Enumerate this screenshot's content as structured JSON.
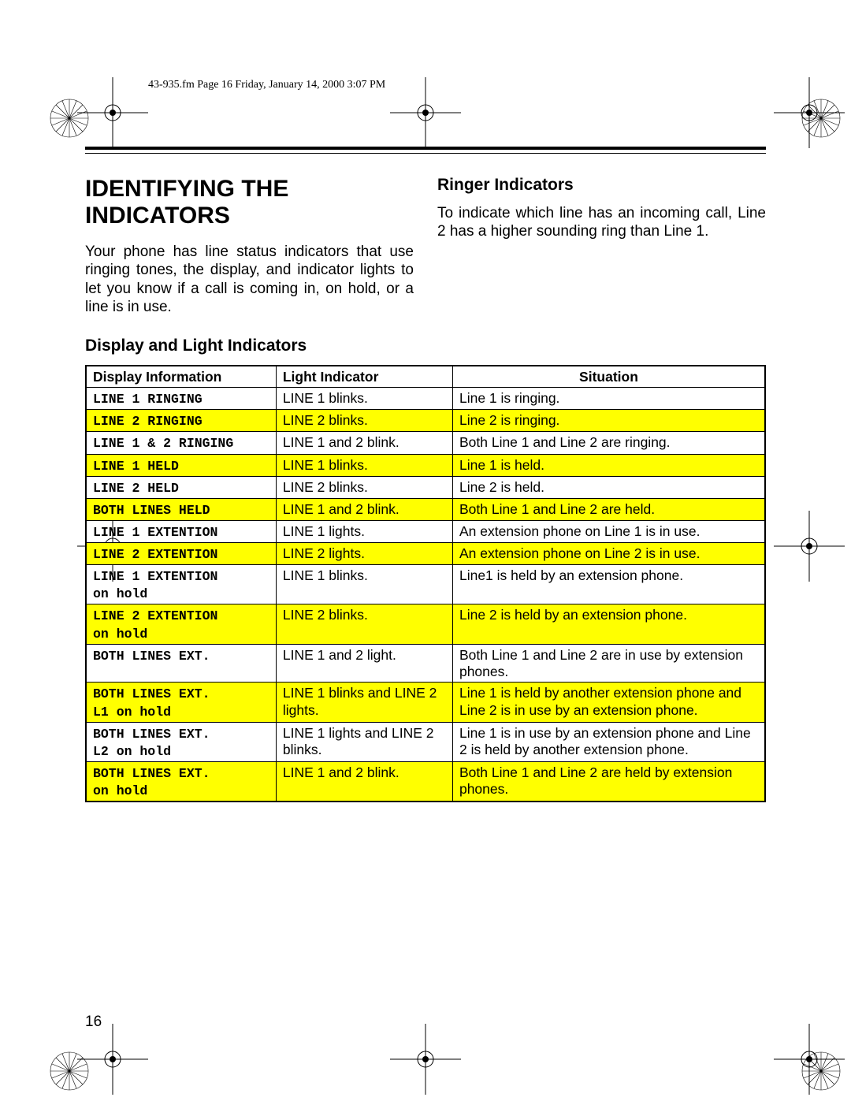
{
  "header": "43-935.fm  Page 16  Friday, January 14, 2000  3:07 PM",
  "title": "IDENTIFYING THE INDICATORS",
  "intro": "Your phone has line status indicators that use ringing tones, the display, and indicator lights to let you know if a call is coming in, on hold, or a line is in use.",
  "ringer": {
    "heading": "Ringer Indicators",
    "text": "To indicate which line has an incoming call, Line 2 has a higher sounding ring than Line 1."
  },
  "section_heading": "Display and Light Indicators",
  "page_number": "16",
  "table": {
    "columns": [
      "Display Information",
      "Light Indicator",
      "Situation"
    ],
    "col_widths_pct": [
      28,
      26,
      46
    ],
    "header_bg": "#ffffff",
    "highlight_bg": "#ffff00",
    "border_color": "#000000",
    "font_size_pt": 13,
    "display_font": "Courier New",
    "rows": [
      {
        "display": "LINE 1 RINGING",
        "light": "LINE 1 blinks.",
        "situation": "Line 1 is ringing.",
        "highlight": false
      },
      {
        "display": "LINE 2 RINGING",
        "light": "LINE 2 blinks.",
        "situation": "Line 2 is ringing.",
        "highlight": true
      },
      {
        "display": "LINE 1 & 2 RINGING",
        "light": "LINE 1 and 2 blink.",
        "situation": "Both Line 1 and Line 2 are ringing.",
        "highlight": false
      },
      {
        "display": "LINE 1 HELD",
        "light": "LINE 1 blinks.",
        "situation": "Line 1 is held.",
        "highlight": true
      },
      {
        "display": "LINE 2 HELD",
        "light": "LINE 2 blinks.",
        "situation": "Line 2 is held.",
        "highlight": false
      },
      {
        "display": "BOTH LINES HELD",
        "light": "LINE 1 and 2 blink.",
        "situation": "Both Line 1 and Line 2 are held.",
        "highlight": true
      },
      {
        "display": "LINE 1 EXTENTION",
        "light": "LINE 1 lights.",
        "situation": "An extension phone on Line 1 is in use.",
        "highlight": false
      },
      {
        "display": "LINE 2 EXTENTION",
        "light": "LINE 2 lights.",
        "situation": "An extension phone on Line 2 is in use.",
        "highlight": true
      },
      {
        "display": "LINE 1 EXTENTION\non hold",
        "light": "LINE 1 blinks.",
        "situation": "Line1 is held by an extension phone.",
        "highlight": false
      },
      {
        "display": "LINE 2 EXTENTION\non hold",
        "light": "LINE 2 blinks.",
        "situation": "Line 2 is held by an extension phone.",
        "highlight": true
      },
      {
        "display": "BOTH LINES EXT.",
        "light": "LINE 1 and 2 light.",
        "situation": "Both Line 1 and Line 2 are in use by extension phones.",
        "highlight": false
      },
      {
        "display": "BOTH LINES EXT.\nL1 on hold",
        "light": "LINE 1 blinks and LINE 2 lights.",
        "situation": "Line 1 is held by another extension phone and Line 2 is in use by an extension phone.",
        "highlight": true
      },
      {
        "display": "BOTH LINES EXT.\nL2 on hold",
        "light": "LINE 1 lights and LINE 2 blinks.",
        "situation": "Line 1 is in use by an extension phone and Line 2 is held by another extension phone.",
        "highlight": false
      },
      {
        "display": "BOTH LINES EXT.\non hold",
        "light": "LINE 1 and 2 blink.",
        "situation": "Both Line 1 and Line 2 are held by extension phones.",
        "highlight": true
      }
    ]
  }
}
